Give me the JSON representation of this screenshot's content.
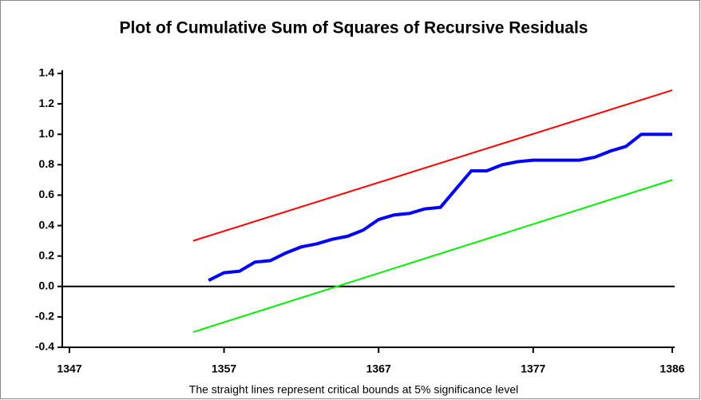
{
  "chart_data": {
    "type": "line",
    "title": "Plot of Cumulative Sum of Squares of Recursive Residuals",
    "note": "The straight lines represent critical bounds at 5% significance level",
    "xlim": [
      1347,
      1386
    ],
    "xticks": [
      1347,
      1357,
      1367,
      1377,
      1386
    ],
    "ylim": [
      -0.4,
      1.4
    ],
    "yticks": [
      -0.4,
      -0.2,
      {
        "value": 0,
        "label": "0.0"
      },
      0.2,
      0.4,
      0.6,
      0.8,
      {
        "value": 1,
        "label": "1.0"
      },
      1.2,
      1.4
    ],
    "series": [
      {
        "color": "#0000ff",
        "x": [
          1356,
          1357,
          1358,
          1359,
          1360,
          1361,
          1362,
          1363,
          1364,
          1365,
          1366,
          1367,
          1368,
          1369,
          1370,
          1371,
          1372,
          1373,
          1374,
          1375,
          1376,
          1377,
          1378,
          1379,
          1380,
          1381,
          1382,
          1383,
          1384,
          1385,
          1386
        ],
        "values": [
          0.04,
          0.09,
          0.1,
          0.16,
          0.17,
          0.22,
          0.26,
          0.28,
          0.31,
          0.33,
          0.37,
          0.44,
          0.47,
          0.48,
          0.51,
          0.52,
          0.64,
          0.76,
          0.76,
          0.8,
          0.82,
          0.83,
          0.83,
          0.83,
          0.83,
          0.85,
          0.89,
          0.92,
          1.0,
          1.0,
          1.0
        ]
      },
      {
        "color": "#ff0000",
        "x": [
          1355,
          1386
        ],
        "values": [
          0.3,
          1.29
        ]
      },
      {
        "color": "#00ee00",
        "x": [
          1355,
          1386
        ],
        "values": [
          -0.3,
          0.7
        ]
      }
    ]
  }
}
